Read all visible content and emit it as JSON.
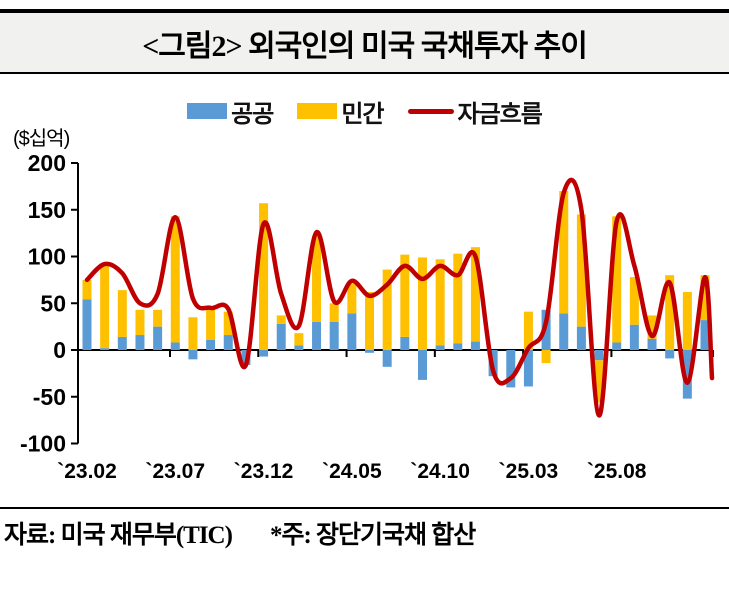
{
  "title": "<그림2> 외국인의 미국 국채투자 추이",
  "unit_label": "($십억)",
  "legend": {
    "public_label": "공공",
    "private_label": "민간",
    "flow_label": "자금흐름"
  },
  "colors": {
    "public": "#5B9BD5",
    "private": "#FFC000",
    "flow": "#C00000",
    "axis": "#000000",
    "title_band_bg": "#F1F1F0"
  },
  "footer": {
    "source": "자료: 미국 재무부(TIC)",
    "note": "*주: 장단기국채 합산"
  },
  "chart_data": {
    "type": "bar",
    "title": "외국인의 미국 국채투자 추이",
    "ylabel": "($십억)",
    "ylim": [
      -100,
      200
    ],
    "y_ticks": [
      200,
      150,
      100,
      50,
      0,
      -50,
      -100
    ],
    "grid": false,
    "legend_position": "top",
    "x": [
      "23.02",
      "23.03",
      "23.04",
      "23.05",
      "23.06",
      "23.07",
      "23.08",
      "23.09",
      "23.10",
      "23.11",
      "23.12",
      "24.01",
      "24.02",
      "24.03",
      "24.04",
      "24.05",
      "24.06",
      "24.07",
      "24.08",
      "24.09",
      "24.10",
      "24.11",
      "24.12",
      "25.01",
      "25.02",
      "25.03",
      "25.04",
      "25.05",
      "25.06",
      "25.07",
      "25.08",
      "25.09",
      "25.10",
      "25.11",
      "25.12",
      "26.01"
    ],
    "x_tick_labels": [
      "`23.02",
      "`23.07",
      "`23.12",
      "`24.05",
      "`24.10",
      "`25.03",
      "`25.08"
    ],
    "x_tick_label_indices": [
      0,
      5,
      10,
      15,
      20,
      25,
      30
    ],
    "series": [
      {
        "name": "공공",
        "type": "bar",
        "color": "#5B9BD5",
        "values": [
          54,
          2,
          14,
          16,
          25,
          8,
          -10,
          11,
          16,
          -16,
          -7,
          28,
          5,
          30,
          30,
          39,
          -3,
          -18,
          14,
          -32,
          5,
          7,
          9,
          -28,
          -40,
          -39,
          43,
          39,
          25,
          -11,
          8,
          27,
          12,
          -9,
          -52,
          32
        ]
      },
      {
        "name": "민간",
        "type": "bar",
        "color": "#FFC000",
        "values": [
          21,
          88,
          50,
          27,
          18,
          135,
          35,
          32,
          25,
          0,
          157,
          9,
          13,
          92,
          20,
          32,
          62,
          86,
          88,
          99,
          92,
          96,
          101,
          0,
          0,
          41,
          -14,
          131,
          120,
          -45,
          135,
          51,
          25,
          80,
          62,
          48
        ]
      },
      {
        "name": "자금흐름",
        "type": "line",
        "color": "#C00000",
        "values": [
          75,
          92,
          82,
          50,
          60,
          142,
          55,
          45,
          44,
          -16,
          135,
          60,
          26,
          126,
          52,
          74,
          58,
          70,
          90,
          76,
          90,
          80,
          100,
          -22,
          -30,
          2,
          30,
          168,
          150,
          -70,
          138,
          90,
          15,
          72,
          -35,
          78
        ],
        "trailing_value": -30
      }
    ]
  }
}
